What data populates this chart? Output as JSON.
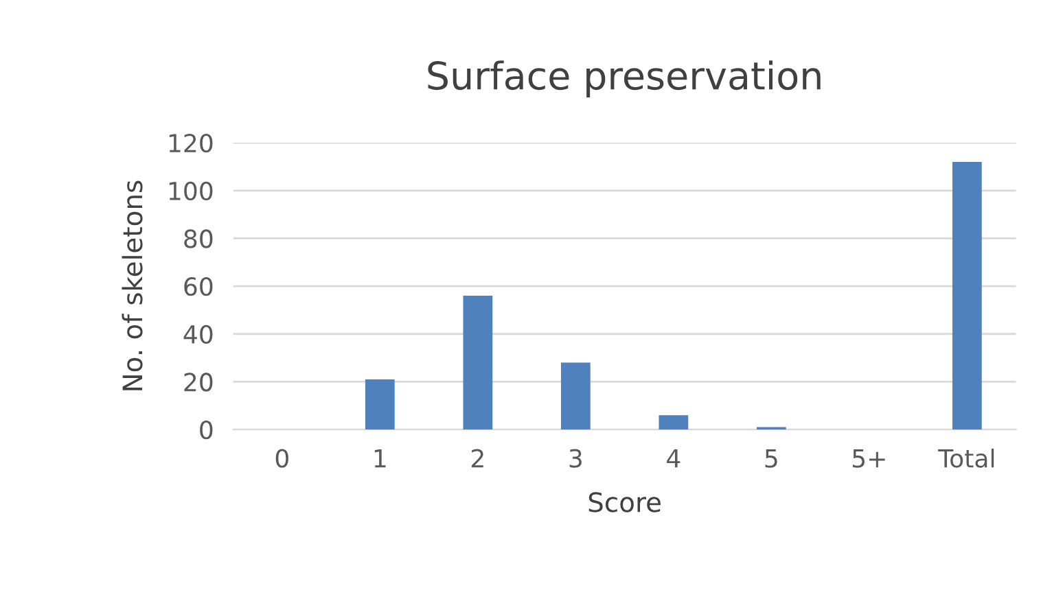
{
  "chart_data": {
    "type": "bar",
    "title": "Surface preservation",
    "xlabel": "Score",
    "ylabel": "No. of skeletons",
    "categories": [
      "0",
      "1",
      "2",
      "3",
      "4",
      "5",
      "5+",
      "Total"
    ],
    "values": [
      0,
      21,
      56,
      28,
      6,
      1,
      0,
      112
    ],
    "color": "#4f81bd",
    "ylim": [
      0,
      120
    ],
    "yticks": [
      0,
      20,
      40,
      60,
      80,
      100,
      120
    ],
    "grid": "y",
    "legend": false
  }
}
